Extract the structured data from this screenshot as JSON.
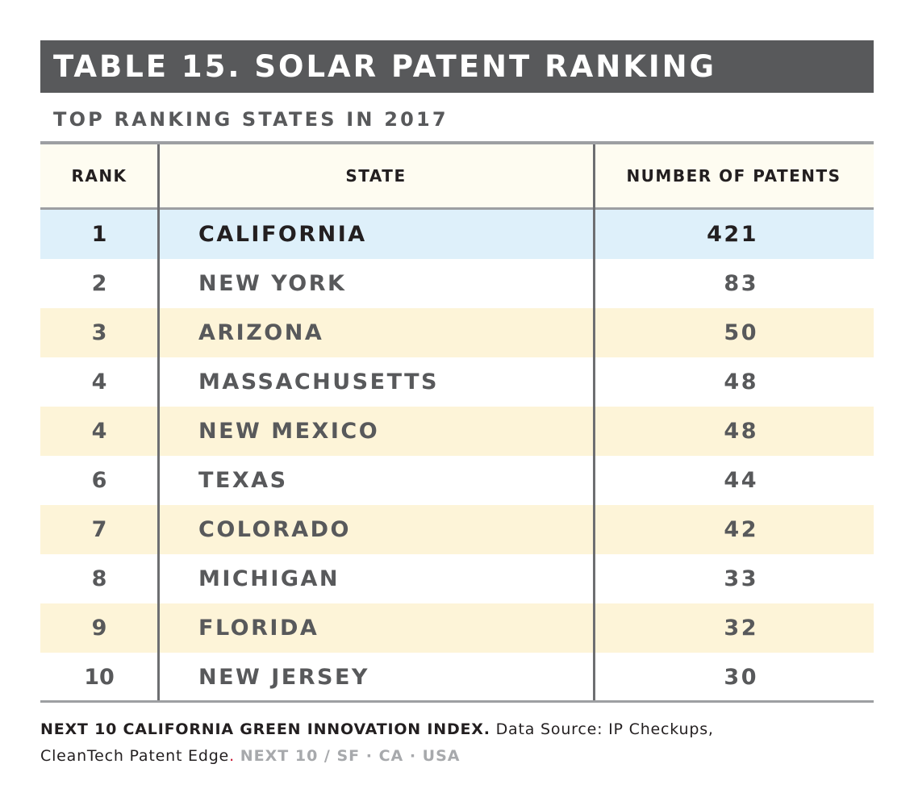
{
  "title": "TABLE 15. SOLAR PATENT RANKING",
  "subtitle": "TOP RANKING STATES IN 2017",
  "columns": {
    "rank": "RANK",
    "state": "STATE",
    "patents": "NUMBER OF PATENTS"
  },
  "rows": [
    {
      "rank": "1",
      "state": "CALIFORNIA",
      "patents": "421"
    },
    {
      "rank": "2",
      "state": "NEW YORK",
      "patents": "83"
    },
    {
      "rank": "3",
      "state": "ARIZONA",
      "patents": "50"
    },
    {
      "rank": "4",
      "state": "MASSACHUSETTS",
      "patents": "48"
    },
    {
      "rank": "4",
      "state": "NEW MEXICO",
      "patents": "48"
    },
    {
      "rank": "6",
      "state": "TEXAS",
      "patents": "44"
    },
    {
      "rank": "7",
      "state": "COLORADO",
      "patents": "42"
    },
    {
      "rank": "8",
      "state": "MICHIGAN",
      "patents": "33"
    },
    {
      "rank": "9",
      "state": "FLORIDA",
      "patents": "32"
    },
    {
      "rank": "10",
      "state": "NEW JERSEY",
      "patents": "30"
    }
  ],
  "footer": {
    "index_name": "NEXT 10 CALIFORNIA GREEN INNOVATION INDEX.",
    "source_line1": "Data Source: IP Checkups,",
    "source_line2": "CleanTech Patent Edge",
    "period": ".",
    "credit": "NEXT 10 / SF · CA · USA"
  },
  "colors": {
    "title_bar": "#58595b",
    "highlight_row": "#def0fa",
    "alt_row": "#fdf4d8",
    "header_row": "#fefcf1"
  }
}
